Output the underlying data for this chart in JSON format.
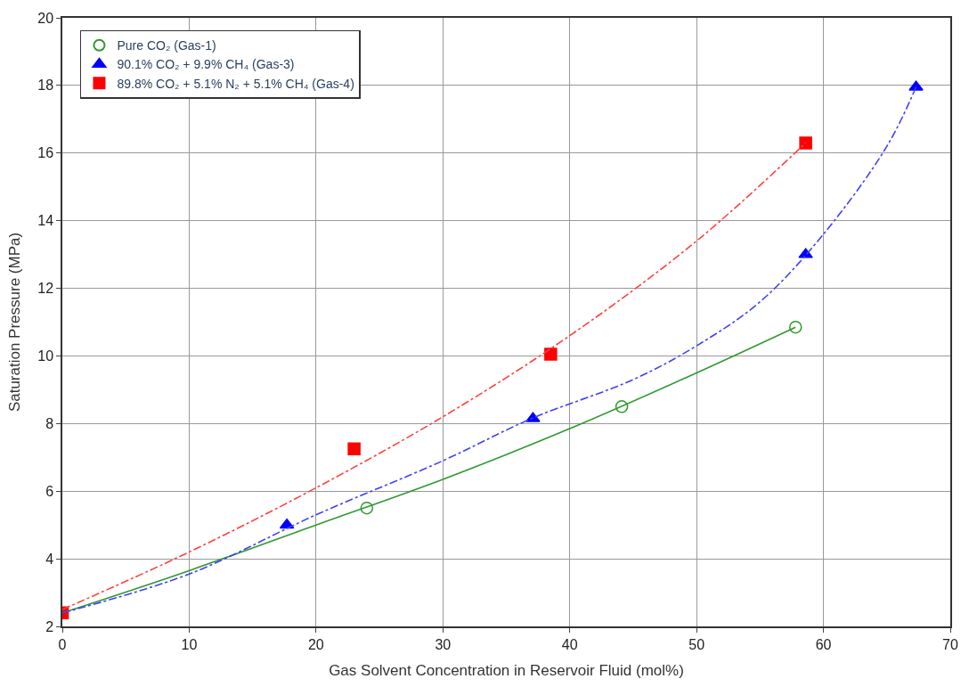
{
  "chart_data": {
    "type": "scatter",
    "xlabel": "Gas Solvent Concentration in Reservoir Fluid (mol%)",
    "ylabel": "Saturation Pressure (MPa)",
    "xlim": [
      0,
      70
    ],
    "ylim": [
      2,
      20
    ],
    "xticks": [
      0,
      10,
      20,
      30,
      40,
      50,
      60,
      70
    ],
    "yticks": [
      2,
      4,
      6,
      8,
      10,
      12,
      14,
      16,
      18,
      20
    ],
    "grid": true,
    "legend": "top left",
    "series": [
      {
        "name": "Pure CO₂ (Gas-1)",
        "marker": "circle",
        "color": "#2e9a2e",
        "x": [
          24,
          44.1,
          57.8
        ],
        "values": [
          5.5,
          8.5,
          10.85
        ]
      },
      {
        "name": "90.1% CO₂ + 9.9% CH₄ (Gas-3)",
        "marker": "triangle",
        "color": "#0000ff",
        "x": [
          17.7,
          37.1,
          58.6,
          67.3
        ],
        "values": [
          5.0,
          8.15,
          13.0,
          17.95
        ]
      },
      {
        "name": "89.8% CO₂ + 5.1% N₂ + 5.1% CH₄ (Gas-4)",
        "marker": "square",
        "color": "#ff0000",
        "x": [
          0,
          23,
          38.5,
          58.6
        ],
        "values": [
          2.4,
          7.25,
          10.05,
          16.3
        ]
      },
      {
        "type": "line",
        "line_style": "solid",
        "color": "#2e9a2e",
        "x": [
          0,
          10,
          20,
          30,
          40,
          50,
          57.8
        ],
        "values": [
          2.4,
          3.65,
          5.0,
          6.35,
          7.85,
          9.5,
          10.85
        ]
      },
      {
        "type": "line",
        "line_style": "dashed",
        "color": "#4040ff",
        "x": [
          0,
          10,
          20,
          30,
          37,
          45,
          50,
          55,
          60,
          65,
          67.3
        ],
        "values": [
          2.4,
          3.55,
          5.3,
          6.9,
          8.15,
          9.3,
          10.3,
          11.6,
          13.6,
          16.2,
          17.95
        ]
      },
      {
        "type": "line",
        "line_style": "dashed",
        "color": "#ff4040",
        "x": [
          0,
          10,
          20,
          30,
          40,
          50,
          58.6
        ],
        "values": [
          2.5,
          4.2,
          6.1,
          8.2,
          10.6,
          13.4,
          16.3
        ]
      }
    ]
  }
}
